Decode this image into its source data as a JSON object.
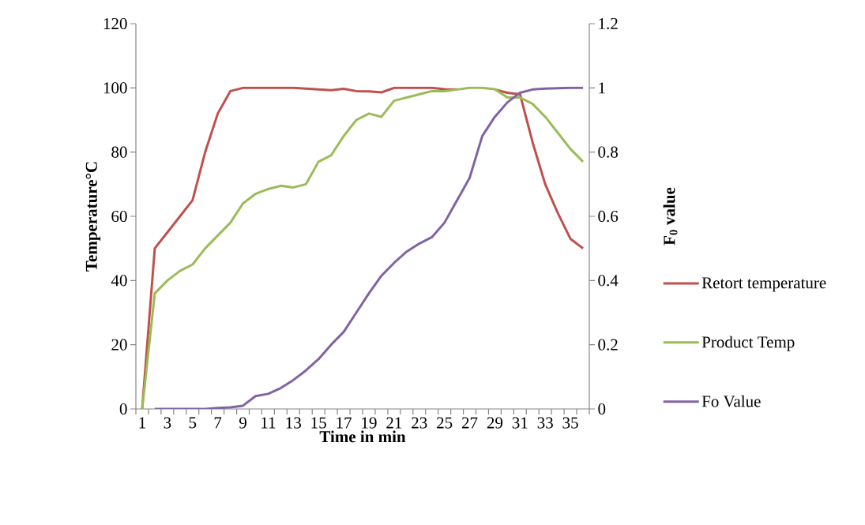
{
  "chart_data": {
    "type": "line",
    "xlabel": "Time in min",
    "ylabel": "Temperature°C",
    "y2label": "F$_{0}$ value",
    "categories": [
      "1",
      null,
      "3",
      null,
      "5",
      null,
      "7",
      null,
      "9",
      null,
      "11",
      null,
      "13",
      null,
      "15",
      null,
      "17",
      null,
      "19",
      null,
      "21",
      null,
      "23",
      null,
      "25",
      null,
      "27",
      null,
      "29",
      null,
      "31",
      null,
      "33",
      null,
      "35",
      null
    ],
    "series": [
      {
        "name": "Retort temperature",
        "color": "#c0504d",
        "values": [
          0,
          50,
          55,
          60,
          65,
          80,
          92,
          99,
          100,
          100,
          100,
          100,
          100,
          99.8,
          99.5,
          99.3,
          99.7,
          99,
          98.9,
          98.6,
          100,
          100,
          100,
          100,
          99.6,
          99.5,
          null,
          null,
          99.5,
          98.5,
          98,
          83,
          70,
          61,
          53,
          50
        ]
      },
      {
        "name": "Product Temp",
        "color": "#9bbb59",
        "values": [
          0,
          36,
          40,
          43,
          45,
          50,
          54,
          58,
          64,
          67,
          68.5,
          69.5,
          69,
          70,
          77,
          79,
          85,
          90,
          92,
          91,
          96,
          97,
          98,
          99,
          99,
          99.5,
          100,
          100,
          99.6,
          97,
          97,
          95,
          91,
          86,
          81,
          77
        ]
      },
      {
        "name": "Fo Value",
        "color": "#8064a2",
        "axis": "y2",
        "values": [
          null,
          0,
          0,
          0,
          0,
          0,
          0.003,
          0.005,
          0.01,
          0.04,
          0.047,
          0.065,
          0.09,
          0.12,
          0.155,
          0.2,
          0.24,
          0.3,
          0.36,
          0.415,
          0.455,
          0.49,
          0.515,
          0.535,
          0.58,
          0.65,
          0.72,
          0.85,
          0.91,
          0.955,
          0.985,
          0.995,
          0.998,
          0.999,
          1,
          1
        ]
      }
    ],
    "ylim": [
      0,
      120
    ],
    "yticks": [
      0,
      20,
      40,
      60,
      80,
      100,
      120
    ],
    "y2lim": [
      0,
      1.2
    ],
    "y2ticks": [
      0,
      0.2,
      0.4,
      0.6,
      0.8,
      1,
      1.2
    ],
    "legend": "right"
  }
}
